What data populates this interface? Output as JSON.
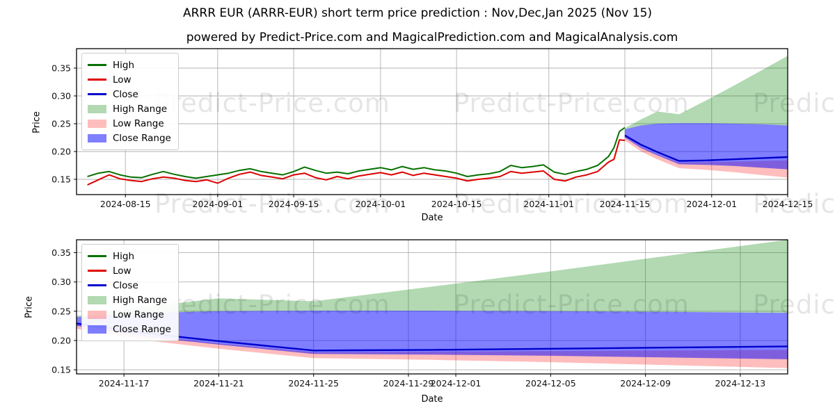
{
  "title": "ARRR EUR (ARRR-EUR) short term price prediction : Nov,Dec,Jan 2025 (Nov 15)",
  "subtitle": "powered by Predict-Price.com and MagicalPrediction.com and MagicalAnalysis.com",
  "watermark": "Predict-Price.com",
  "colors": {
    "high": "#067000",
    "low": "#dd0000",
    "close": "#0000cc",
    "high_range": "rgba(0,128,0,0.30)",
    "low_range": "rgba(255,0,0,0.26)",
    "close_range": "rgba(0,0,255,0.50)",
    "grid": "#b0b0b0",
    "spine": "#000000",
    "tick_text": "#111111",
    "watermark": "rgba(0,0,0,0.10)"
  },
  "legend": [
    {
      "label": "High",
      "swatch": "line",
      "color_key": "high"
    },
    {
      "label": "Low",
      "swatch": "line",
      "color_key": "low"
    },
    {
      "label": "Close",
      "swatch": "line",
      "color_key": "close"
    },
    {
      "label": "High Range",
      "swatch": "patch",
      "color_key": "high_range"
    },
    {
      "label": "Low Range",
      "swatch": "patch",
      "color_key": "low_range"
    },
    {
      "label": "Close Range",
      "swatch": "patch",
      "color_key": "close_range"
    }
  ],
  "chart_data": [
    {
      "type": "line",
      "name": "price-history-and-forecast-chart",
      "ylabel": "Price",
      "xlabel": "Date",
      "grid": true,
      "legend_position": "upper left",
      "xlim": [
        "2024-08-06",
        "2024-12-15"
      ],
      "ylim": [
        0.1225,
        0.385
      ],
      "yticks": [
        0.15,
        0.2,
        0.25,
        0.3,
        0.35
      ],
      "xticks": [
        "2024-08-15",
        "2024-09-01",
        "2024-09-15",
        "2024-10-01",
        "2024-10-15",
        "2024-11-01",
        "2024-11-15",
        "2024-12-01",
        "2024-12-15"
      ],
      "series": [
        {
          "name": "High Range",
          "kind": "band",
          "color_key": "high_range",
          "dates": [
            "2024-11-15",
            "2024-11-18",
            "2024-11-21",
            "2024-11-25",
            "2024-11-30",
            "2024-12-05",
            "2024-12-10",
            "2024-12-15"
          ],
          "upper": [
            0.242,
            0.258,
            0.272,
            0.267,
            0.292,
            0.318,
            0.345,
            0.372
          ],
          "lower": [
            0.24,
            0.247,
            0.25,
            0.251,
            0.251,
            0.25,
            0.249,
            0.247
          ]
        },
        {
          "name": "Low Range",
          "kind": "band",
          "color_key": "low_range",
          "dates": [
            "2024-11-15",
            "2024-11-18",
            "2024-11-21",
            "2024-11-25",
            "2024-11-30",
            "2024-12-05",
            "2024-12-10",
            "2024-12-15"
          ],
          "upper": [
            0.227,
            0.208,
            0.195,
            0.18,
            0.181,
            0.182,
            0.183,
            0.184
          ],
          "lower": [
            0.22,
            0.2,
            0.186,
            0.17,
            0.167,
            0.163,
            0.158,
            0.153
          ]
        },
        {
          "name": "Close Range",
          "kind": "band",
          "color_key": "close_range",
          "dates": [
            "2024-11-15",
            "2024-11-18",
            "2024-11-21",
            "2024-11-25",
            "2024-11-30",
            "2024-12-05",
            "2024-12-10",
            "2024-12-15"
          ],
          "upper": [
            0.24,
            0.247,
            0.25,
            0.251,
            0.251,
            0.25,
            0.249,
            0.247
          ],
          "lower": [
            0.225,
            0.206,
            0.193,
            0.177,
            0.176,
            0.174,
            0.171,
            0.168
          ]
        },
        {
          "name": "High",
          "kind": "line",
          "color_key": "high",
          "width": 2,
          "dates": [
            "2024-08-08",
            "2024-08-10",
            "2024-08-12",
            "2024-08-14",
            "2024-08-16",
            "2024-08-18",
            "2024-08-20",
            "2024-08-22",
            "2024-08-24",
            "2024-08-26",
            "2024-08-28",
            "2024-08-30",
            "2024-09-01",
            "2024-09-03",
            "2024-09-05",
            "2024-09-07",
            "2024-09-09",
            "2024-09-11",
            "2024-09-13",
            "2024-09-15",
            "2024-09-17",
            "2024-09-19",
            "2024-09-21",
            "2024-09-23",
            "2024-09-25",
            "2024-09-27",
            "2024-09-29",
            "2024-10-01",
            "2024-10-03",
            "2024-10-05",
            "2024-10-07",
            "2024-10-09",
            "2024-10-11",
            "2024-10-13",
            "2024-10-15",
            "2024-10-17",
            "2024-10-19",
            "2024-10-21",
            "2024-10-23",
            "2024-10-25",
            "2024-10-27",
            "2024-10-29",
            "2024-10-31",
            "2024-11-02",
            "2024-11-04",
            "2024-11-06",
            "2024-11-08",
            "2024-11-10",
            "2024-11-12",
            "2024-11-13",
            "2024-11-14",
            "2024-11-15"
          ],
          "values": [
            0.155,
            0.161,
            0.164,
            0.158,
            0.154,
            0.153,
            0.159,
            0.164,
            0.159,
            0.155,
            0.152,
            0.155,
            0.158,
            0.161,
            0.166,
            0.169,
            0.164,
            0.161,
            0.158,
            0.164,
            0.172,
            0.166,
            0.161,
            0.163,
            0.16,
            0.165,
            0.168,
            0.171,
            0.167,
            0.173,
            0.168,
            0.171,
            0.167,
            0.165,
            0.161,
            0.155,
            0.158,
            0.16,
            0.164,
            0.175,
            0.171,
            0.173,
            0.176,
            0.163,
            0.159,
            0.164,
            0.168,
            0.175,
            0.191,
            0.207,
            0.236,
            0.243
          ]
        },
        {
          "name": "Low",
          "kind": "line",
          "color_key": "low",
          "width": 2,
          "dates": [
            "2024-08-08",
            "2024-08-10",
            "2024-08-12",
            "2024-08-14",
            "2024-08-16",
            "2024-08-18",
            "2024-08-20",
            "2024-08-22",
            "2024-08-24",
            "2024-08-26",
            "2024-08-28",
            "2024-08-30",
            "2024-09-01",
            "2024-09-03",
            "2024-09-05",
            "2024-09-07",
            "2024-09-09",
            "2024-09-11",
            "2024-09-13",
            "2024-09-15",
            "2024-09-17",
            "2024-09-19",
            "2024-09-21",
            "2024-09-23",
            "2024-09-25",
            "2024-09-27",
            "2024-09-29",
            "2024-10-01",
            "2024-10-03",
            "2024-10-05",
            "2024-10-07",
            "2024-10-09",
            "2024-10-11",
            "2024-10-13",
            "2024-10-15",
            "2024-10-17",
            "2024-10-19",
            "2024-10-21",
            "2024-10-23",
            "2024-10-25",
            "2024-10-27",
            "2024-10-29",
            "2024-10-31",
            "2024-11-02",
            "2024-11-04",
            "2024-11-06",
            "2024-11-08",
            "2024-11-10",
            "2024-11-12",
            "2024-11-13",
            "2024-11-14",
            "2024-11-15"
          ],
          "values": [
            0.14,
            0.149,
            0.158,
            0.151,
            0.148,
            0.146,
            0.151,
            0.154,
            0.152,
            0.148,
            0.146,
            0.149,
            0.143,
            0.152,
            0.159,
            0.163,
            0.157,
            0.154,
            0.151,
            0.158,
            0.161,
            0.153,
            0.149,
            0.155,
            0.151,
            0.156,
            0.159,
            0.162,
            0.158,
            0.163,
            0.157,
            0.161,
            0.158,
            0.155,
            0.152,
            0.147,
            0.15,
            0.152,
            0.155,
            0.164,
            0.161,
            0.163,
            0.165,
            0.15,
            0.147,
            0.154,
            0.158,
            0.164,
            0.181,
            0.186,
            0.221,
            0.22
          ]
        },
        {
          "name": "Close",
          "kind": "line",
          "color_key": "close",
          "width": 2.4,
          "dates": [
            "2024-11-15",
            "2024-11-18",
            "2024-11-21",
            "2024-11-25",
            "2024-11-30",
            "2024-12-05",
            "2024-12-10",
            "2024-12-15"
          ],
          "values": [
            0.229,
            0.212,
            0.199,
            0.183,
            0.184,
            0.186,
            0.188,
            0.19
          ]
        }
      ]
    },
    {
      "type": "line",
      "name": "forecast-zoom-chart",
      "ylabel": "Price",
      "xlabel": "Date",
      "grid": true,
      "legend_position": "upper left",
      "xlim": [
        "2024-11-15",
        "2024-12-15"
      ],
      "ylim": [
        0.143,
        0.372
      ],
      "yticks": [
        0.15,
        0.2,
        0.25,
        0.3,
        0.35
      ],
      "xticks": [
        "2024-11-17",
        "2024-11-21",
        "2024-11-25",
        "2024-11-29",
        "2024-12-01",
        "2024-12-05",
        "2024-12-09",
        "2024-12-13"
      ],
      "series": [
        {
          "name": "High Range",
          "kind": "band",
          "color_key": "high_range",
          "dates": [
            "2024-11-15",
            "2024-11-18",
            "2024-11-21",
            "2024-11-25",
            "2024-11-30",
            "2024-12-05",
            "2024-12-10",
            "2024-12-15"
          ],
          "upper": [
            0.242,
            0.258,
            0.272,
            0.267,
            0.292,
            0.318,
            0.345,
            0.372
          ],
          "lower": [
            0.24,
            0.247,
            0.25,
            0.251,
            0.251,
            0.25,
            0.249,
            0.247
          ]
        },
        {
          "name": "Low Range",
          "kind": "band",
          "color_key": "low_range",
          "dates": [
            "2024-11-15",
            "2024-11-18",
            "2024-11-21",
            "2024-11-25",
            "2024-11-30",
            "2024-12-05",
            "2024-12-10",
            "2024-12-15"
          ],
          "upper": [
            0.227,
            0.208,
            0.195,
            0.18,
            0.181,
            0.182,
            0.183,
            0.184
          ],
          "lower": [
            0.22,
            0.2,
            0.186,
            0.17,
            0.167,
            0.163,
            0.158,
            0.153
          ]
        },
        {
          "name": "Close Range",
          "kind": "band",
          "color_key": "close_range",
          "dates": [
            "2024-11-15",
            "2024-11-18",
            "2024-11-21",
            "2024-11-25",
            "2024-11-30",
            "2024-12-05",
            "2024-12-10",
            "2024-12-15"
          ],
          "upper": [
            0.24,
            0.247,
            0.25,
            0.251,
            0.251,
            0.25,
            0.249,
            0.247
          ],
          "lower": [
            0.225,
            0.206,
            0.193,
            0.177,
            0.176,
            0.174,
            0.171,
            0.168
          ]
        },
        {
          "name": "Close",
          "kind": "line",
          "color_key": "close",
          "width": 2.4,
          "dates": [
            "2024-11-15",
            "2024-11-18",
            "2024-11-21",
            "2024-11-25",
            "2024-11-30",
            "2024-12-05",
            "2024-12-10",
            "2024-12-15"
          ],
          "values": [
            0.229,
            0.212,
            0.199,
            0.183,
            0.184,
            0.186,
            0.188,
            0.19
          ]
        }
      ]
    }
  ]
}
